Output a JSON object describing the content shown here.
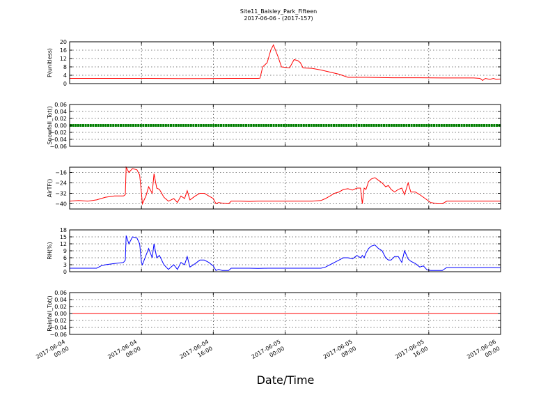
{
  "title": {
    "line1": "Site11_Baisley_Park_Fifteen",
    "line2": "2017-06-06 - (2017-157)"
  },
  "xlabel": "Date/Time",
  "x_ticks": [
    {
      "t": 0,
      "line1": "2017-06-04",
      "line2": "00:00"
    },
    {
      "t": 8,
      "line1": "2017-06-04",
      "line2": "08:00"
    },
    {
      "t": 16,
      "line1": "2017-06-04",
      "line2": "16:00"
    },
    {
      "t": 24,
      "line1": "2017-06-05",
      "line2": "00:00"
    },
    {
      "t": 32,
      "line1": "2017-06-05",
      "line2": "08:00"
    },
    {
      "t": 40,
      "line1": "2017-06-05",
      "line2": "16:00"
    },
    {
      "t": 48,
      "line1": "2017-06-06",
      "line2": "00:00"
    }
  ],
  "colors": {
    "red": "#ff0000",
    "green": "#007f00",
    "blue": "#0000ff",
    "axis": "#000000"
  },
  "chart_data": [
    {
      "type": "line",
      "ylabel": "P(unitless)",
      "ylim": [
        0,
        20
      ],
      "yticks": [
        "0",
        "4",
        "8",
        "12",
        "16",
        "20"
      ],
      "yticks_values": [
        0,
        4,
        8,
        12,
        16,
        20
      ],
      "xlim": [
        "2017-06-04 00:00",
        "2017-06-06 00:00"
      ],
      "grid": true,
      "color": "red",
      "points": [
        [
          0,
          2.5
        ],
        [
          3,
          2.5
        ],
        [
          6,
          2.5
        ],
        [
          9,
          2.5
        ],
        [
          12,
          2.4
        ],
        [
          15,
          2.4
        ],
        [
          18,
          2.5
        ],
        [
          21,
          2.5
        ],
        [
          21.2,
          2.6
        ],
        [
          21.5,
          8
        ],
        [
          22,
          10
        ],
        [
          22.4,
          16
        ],
        [
          22.7,
          18.5
        ],
        [
          23.2,
          13
        ],
        [
          23.6,
          8
        ],
        [
          24.5,
          7.5
        ],
        [
          25,
          11.5
        ],
        [
          25.4,
          11
        ],
        [
          25.7,
          10
        ],
        [
          26,
          7.5
        ],
        [
          27,
          7.3
        ],
        [
          28,
          6.5
        ],
        [
          29,
          5.5
        ],
        [
          29.5,
          5
        ],
        [
          30,
          4.5
        ],
        [
          31,
          3
        ],
        [
          33,
          3
        ],
        [
          36,
          2.8
        ],
        [
          39,
          2.8
        ],
        [
          42,
          2.7
        ],
        [
          45,
          2.7
        ],
        [
          45.7,
          2.5
        ],
        [
          46,
          1.5
        ],
        [
          46.3,
          2.5
        ],
        [
          46.8,
          2
        ],
        [
          47.2,
          2.5
        ],
        [
          47.5,
          2
        ],
        [
          48,
          2.2
        ]
      ]
    },
    {
      "type": "scatter",
      "ylabel": "Snowfall_Tot()",
      "ylim": [
        -0.06,
        0.06
      ],
      "yticks": [
        "−0.06",
        "−0.04",
        "−0.02",
        "0.00",
        "0.02",
        "0.04",
        "0.06"
      ],
      "yticks_values": [
        -0.06,
        -0.04,
        -0.02,
        0,
        0.02,
        0.04,
        0.06
      ],
      "grid": true,
      "color": "green",
      "constant": 0.0,
      "marker": "dense markers at 0.00 across full range"
    },
    {
      "type": "line",
      "ylabel": "AirTF()",
      "ylim": [
        -44,
        -12
      ],
      "yticks": [
        "−40",
        "−32",
        "−24",
        "−16"
      ],
      "yticks_values": [
        -40,
        -32,
        -24,
        -16
      ],
      "grid": true,
      "color": "red",
      "points": [
        [
          0,
          -38
        ],
        [
          1,
          -37.5
        ],
        [
          2,
          -38
        ],
        [
          3,
          -37
        ],
        [
          3.5,
          -36
        ],
        [
          4,
          -35
        ],
        [
          5,
          -34
        ],
        [
          6,
          -34
        ],
        [
          6.2,
          -33
        ],
        [
          6.3,
          -12
        ],
        [
          6.6,
          -16
        ],
        [
          7,
          -13
        ],
        [
          7.5,
          -14
        ],
        [
          7.8,
          -18
        ],
        [
          8,
          -32
        ],
        [
          8.1,
          -40
        ],
        [
          8.5,
          -34
        ],
        [
          8.8,
          -27
        ],
        [
          9.2,
          -32
        ],
        [
          9.4,
          -17
        ],
        [
          9.7,
          -28
        ],
        [
          10,
          -29
        ],
        [
          10.5,
          -35
        ],
        [
          11,
          -38
        ],
        [
          11.3,
          -37
        ],
        [
          11.6,
          -36
        ],
        [
          12,
          -39
        ],
        [
          12.4,
          -34
        ],
        [
          12.8,
          -36
        ],
        [
          13.1,
          -30
        ],
        [
          13.4,
          -37
        ],
        [
          14,
          -34
        ],
        [
          14.5,
          -32
        ],
        [
          15,
          -32
        ],
        [
          15.5,
          -34
        ],
        [
          16,
          -36
        ],
        [
          16.3,
          -40
        ],
        [
          16.6,
          -39
        ],
        [
          17,
          -39.5
        ],
        [
          17.7,
          -40
        ],
        [
          18,
          -38
        ],
        [
          19,
          -38
        ],
        [
          20,
          -38.2
        ],
        [
          21,
          -38
        ],
        [
          22,
          -38
        ],
        [
          23,
          -38
        ],
        [
          24,
          -38
        ],
        [
          25,
          -38
        ],
        [
          26,
          -38
        ],
        [
          27,
          -38
        ],
        [
          28,
          -37.5
        ],
        [
          28.5,
          -36
        ],
        [
          29,
          -34
        ],
        [
          29.5,
          -32
        ],
        [
          30,
          -31
        ],
        [
          30.5,
          -29
        ],
        [
          31,
          -28.5
        ],
        [
          31.5,
          -29.5
        ],
        [
          32,
          -28
        ],
        [
          32.4,
          -28
        ],
        [
          32.6,
          -40
        ],
        [
          32.8,
          -28
        ],
        [
          33,
          -29
        ],
        [
          33.3,
          -23
        ],
        [
          33.6,
          -21
        ],
        [
          34,
          -20
        ],
        [
          34.4,
          -22
        ],
        [
          34.8,
          -24
        ],
        [
          35.2,
          -27
        ],
        [
          35.5,
          -26
        ],
        [
          35.8,
          -29
        ],
        [
          36.2,
          -31
        ],
        [
          36.6,
          -29
        ],
        [
          37,
          -28
        ],
        [
          37.3,
          -33
        ],
        [
          37.7,
          -24
        ],
        [
          38,
          -31
        ],
        [
          38.5,
          -31
        ],
        [
          39,
          -33
        ],
        [
          39.4,
          -35
        ],
        [
          39.8,
          -37
        ],
        [
          40.2,
          -39
        ],
        [
          41,
          -40
        ],
        [
          41.5,
          -40
        ],
        [
          42,
          -38
        ],
        [
          43,
          -38
        ],
        [
          44,
          -38
        ],
        [
          45,
          -38
        ],
        [
          46,
          -38
        ],
        [
          47,
          -38
        ],
        [
          48,
          -38
        ]
      ]
    },
    {
      "type": "line",
      "ylabel": "RH(%)",
      "ylim": [
        0,
        18
      ],
      "yticks": [
        "0",
        "3",
        "6",
        "9",
        "12",
        "15",
        "18"
      ],
      "yticks_values": [
        0,
        3,
        6,
        9,
        12,
        15,
        18
      ],
      "grid": true,
      "color": "blue",
      "points": [
        [
          0,
          1.5
        ],
        [
          2,
          1.5
        ],
        [
          3,
          1.5
        ],
        [
          3.5,
          2.5
        ],
        [
          4,
          3
        ],
        [
          5,
          3.5
        ],
        [
          6,
          4
        ],
        [
          6.2,
          5
        ],
        [
          6.3,
          15.5
        ],
        [
          6.6,
          12
        ],
        [
          7,
          15
        ],
        [
          7.5,
          14.5
        ],
        [
          7.8,
          12
        ],
        [
          8,
          4
        ],
        [
          8.1,
          3
        ],
        [
          8.5,
          7
        ],
        [
          8.8,
          10
        ],
        [
          9.2,
          6
        ],
        [
          9.4,
          12
        ],
        [
          9.7,
          6
        ],
        [
          10,
          7
        ],
        [
          10.5,
          3
        ],
        [
          11,
          1
        ],
        [
          11.3,
          2
        ],
        [
          11.6,
          3
        ],
        [
          12,
          1
        ],
        [
          12.4,
          4
        ],
        [
          12.8,
          3
        ],
        [
          13.1,
          6.5
        ],
        [
          13.4,
          2
        ],
        [
          14,
          3.5
        ],
        [
          14.5,
          5
        ],
        [
          15,
          5
        ],
        [
          15.5,
          4
        ],
        [
          16,
          2.5
        ],
        [
          16.3,
          0.5
        ],
        [
          16.6,
          1
        ],
        [
          17,
          0.5
        ],
        [
          17.7,
          0.5
        ],
        [
          18,
          1.5
        ],
        [
          19,
          1.5
        ],
        [
          20,
          1.5
        ],
        [
          21,
          1.4
        ],
        [
          22,
          1.5
        ],
        [
          23,
          1.5
        ],
        [
          24,
          1.5
        ],
        [
          25,
          1.5
        ],
        [
          26,
          1.5
        ],
        [
          27,
          1.5
        ],
        [
          28,
          1.5
        ],
        [
          28.5,
          2
        ],
        [
          29,
          3
        ],
        [
          29.5,
          4
        ],
        [
          30,
          5
        ],
        [
          30.5,
          6
        ],
        [
          31,
          6
        ],
        [
          31.5,
          5.5
        ],
        [
          32,
          7
        ],
        [
          32.4,
          6
        ],
        [
          32.6,
          7
        ],
        [
          32.8,
          6
        ],
        [
          33,
          8
        ],
        [
          33.3,
          10
        ],
        [
          33.6,
          11
        ],
        [
          34,
          11.5
        ],
        [
          34.4,
          10
        ],
        [
          34.8,
          9
        ],
        [
          35.2,
          6
        ],
        [
          35.5,
          5
        ],
        [
          35.8,
          5
        ],
        [
          36.2,
          6.5
        ],
        [
          36.6,
          6.5
        ],
        [
          37,
          4
        ],
        [
          37.3,
          9
        ],
        [
          37.7,
          5.5
        ],
        [
          38,
          4.5
        ],
        [
          38.5,
          3.5
        ],
        [
          39,
          2
        ],
        [
          39.4,
          2.5
        ],
        [
          39.8,
          0.8
        ],
        [
          40.2,
          0.5
        ],
        [
          41,
          0.5
        ],
        [
          41.5,
          0.5
        ],
        [
          42,
          1.8
        ],
        [
          43,
          1.8
        ],
        [
          44,
          1.8
        ],
        [
          45,
          1.7
        ],
        [
          46,
          1.8
        ],
        [
          47,
          1.8
        ],
        [
          48,
          1.7
        ]
      ]
    },
    {
      "type": "line",
      "ylabel": "Rainfall_Tot()",
      "ylim": [
        -0.06,
        0.06
      ],
      "yticks": [
        "−0.06",
        "−0.04",
        "−0.02",
        "0.00",
        "0.02",
        "0.04",
        "0.06"
      ],
      "yticks_values": [
        -0.06,
        -0.04,
        -0.02,
        0,
        0.02,
        0.04,
        0.06
      ],
      "grid": true,
      "color": "red",
      "constant": 0.0
    }
  ]
}
